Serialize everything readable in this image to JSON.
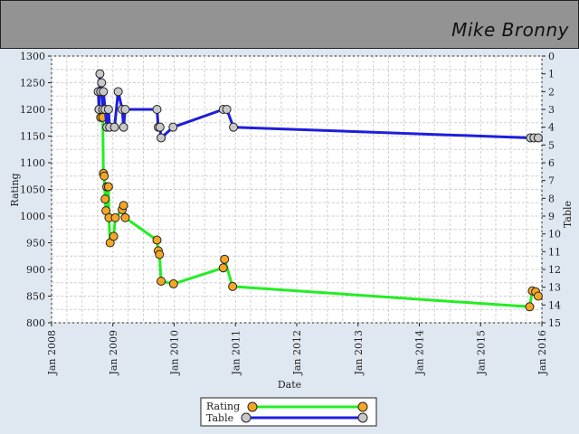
{
  "header": {
    "player_name": "Mike Bronny"
  },
  "chart_data": {
    "type": "line",
    "x_axis": {
      "label": "Date",
      "ticks": [
        "Jan 2008",
        "Jan 2009",
        "Jan 2010",
        "Jan 2011",
        "Jan 2012",
        "Jan 2013",
        "Jan 2014",
        "Jan 2015",
        "Jan 2016"
      ],
      "range": [
        "2008-01-01",
        "2016-01-01"
      ]
    },
    "y_left": {
      "label": "Rating",
      "range": [
        800,
        1300
      ],
      "ticks": [
        800,
        850,
        900,
        950,
        1000,
        1050,
        1100,
        1150,
        1200,
        1250,
        1300
      ]
    },
    "y_right": {
      "label": "Table",
      "range": [
        0,
        15
      ],
      "inverted": true,
      "ticks": [
        0,
        1,
        2,
        3,
        4,
        5,
        6,
        7,
        8,
        9,
        10,
        11,
        12,
        13,
        14,
        15
      ]
    },
    "grid": true,
    "legend_position": "bottom-center",
    "series": [
      {
        "name": "Rating",
        "axis": "left",
        "line_color": "#22ee22",
        "marker_color": "#f5a623",
        "points": [
          [
            "2008-10-10",
            1200
          ],
          [
            "2008-10-20",
            1185
          ],
          [
            "2008-11-01",
            1185
          ],
          [
            "2008-11-05",
            1080
          ],
          [
            "2008-11-10",
            1075
          ],
          [
            "2008-11-15",
            1032
          ],
          [
            "2008-11-20",
            1010
          ],
          [
            "2008-11-25",
            1055
          ],
          [
            "2008-12-05",
            1055
          ],
          [
            "2008-12-08",
            997
          ],
          [
            "2008-12-15",
            950
          ],
          [
            "2009-01-05",
            962
          ],
          [
            "2009-01-15",
            997
          ],
          [
            "2009-02-25",
            1012
          ],
          [
            "2009-03-05",
            1020
          ],
          [
            "2009-03-15",
            997
          ],
          [
            "2009-09-20",
            955
          ],
          [
            "2009-09-28",
            935
          ],
          [
            "2009-10-05",
            928
          ],
          [
            "2009-10-15",
            878
          ],
          [
            "2009-12-28",
            873
          ],
          [
            "2010-10-20",
            903
          ],
          [
            "2010-10-28",
            919
          ],
          [
            "2010-12-15",
            868
          ],
          [
            "2015-10-20",
            830
          ],
          [
            "2015-11-05",
            860
          ],
          [
            "2015-11-25",
            858
          ],
          [
            "2015-12-10",
            850
          ]
        ]
      },
      {
        "name": "Table",
        "axis": "right",
        "line_color": "#1e1edc",
        "marker_color": "#c8c8c8",
        "points": [
          [
            "2008-10-05",
            2
          ],
          [
            "2008-10-10",
            3
          ],
          [
            "2008-10-15",
            1
          ],
          [
            "2008-10-20",
            2
          ],
          [
            "2008-10-25",
            1.5
          ],
          [
            "2008-11-01",
            3
          ],
          [
            "2008-11-05",
            2
          ],
          [
            "2008-11-15",
            3
          ],
          [
            "2008-11-25",
            4
          ],
          [
            "2008-12-05",
            3
          ],
          [
            "2008-12-12",
            4
          ],
          [
            "2009-01-10",
            4
          ],
          [
            "2009-02-01",
            2
          ],
          [
            "2009-02-25",
            3
          ],
          [
            "2009-03-05",
            4
          ],
          [
            "2009-03-15",
            3
          ],
          [
            "2009-09-20",
            3
          ],
          [
            "2009-09-28",
            4
          ],
          [
            "2009-10-08",
            4
          ],
          [
            "2009-10-15",
            4.6
          ],
          [
            "2009-12-25",
            4
          ],
          [
            "2010-10-20",
            3
          ],
          [
            "2010-11-10",
            3
          ],
          [
            "2010-12-20",
            4
          ],
          [
            "2015-10-25",
            4.6
          ],
          [
            "2015-11-15",
            4.6
          ],
          [
            "2015-12-10",
            4.6
          ]
        ]
      }
    ]
  }
}
